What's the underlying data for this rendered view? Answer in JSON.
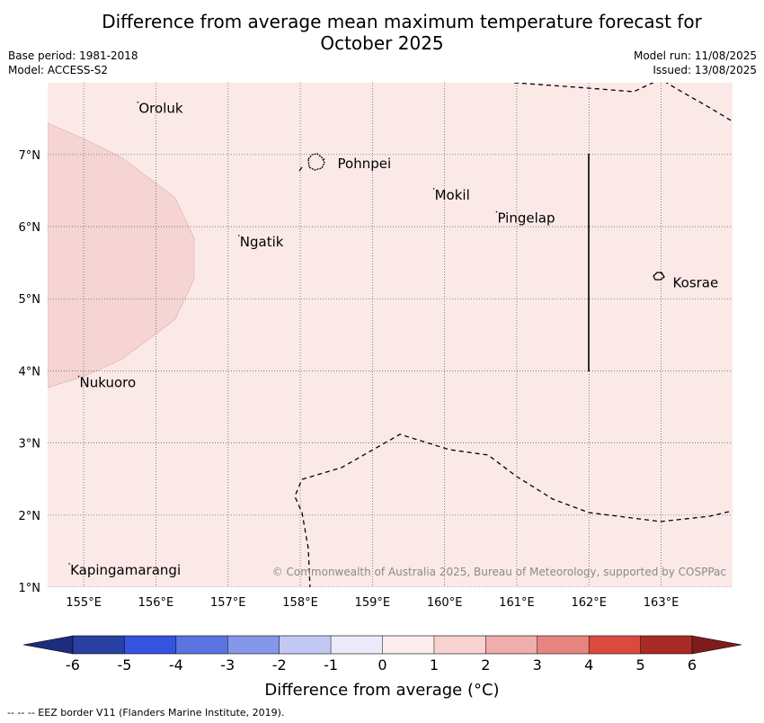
{
  "title_line1": "Difference from average mean maximum temperature forecast for",
  "title_line2": "October 2025",
  "base_period": "Base period: 1981-2018",
  "model": "Model: ACCESS-S2",
  "model_run": "Model run: 11/08/2025",
  "issued": "Issued: 13/08/2025",
  "map": {
    "lon_ticks": [
      "155°E",
      "156°E",
      "157°E",
      "158°E",
      "159°E",
      "160°E",
      "161°E",
      "162°E",
      "163°E"
    ],
    "lat_ticks": [
      "7°N",
      "6°N",
      "5°N",
      "4°N",
      "3°N",
      "2°N",
      "1°N"
    ],
    "background_color": "#fbe9e8",
    "anomaly_patch_color": "#f5d4d3",
    "places": [
      {
        "name": "Oroluk",
        "lon": 155.75,
        "lat": 7.65
      },
      {
        "name": "Pohnpei",
        "lon": 158.33,
        "lat": 6.86
      },
      {
        "name": "Mokil",
        "lon": 159.85,
        "lat": 6.45
      },
      {
        "name": "Pingelap",
        "lon": 160.72,
        "lat": 6.13
      },
      {
        "name": "Ngatik",
        "lon": 157.15,
        "lat": 5.8
      },
      {
        "name": "Kosrae",
        "lon": 163.0,
        "lat": 5.28
      },
      {
        "name": "Nukuoro",
        "lon": 154.93,
        "lat": 3.85
      },
      {
        "name": "Kapingamarangi",
        "lon": 154.8,
        "lat": 1.25
      }
    ],
    "copyright": "© Commonwealth of Australia 2025, Bureau of Meteorology, supported by COSPPac"
  },
  "colorbar": {
    "tick_labels": [
      "-6",
      "-5",
      "-4",
      "-3",
      "-2",
      "-1",
      "0",
      "1",
      "2",
      "3",
      "4",
      "5",
      "6"
    ],
    "colors": [
      "#2940a3",
      "#3553de",
      "#5a74e0",
      "#8597e8",
      "#c2c8f3",
      "#eaeafb",
      "#fdeeed",
      "#f7d2d1",
      "#efadab",
      "#e6857f",
      "#dc4a3f",
      "#a92b25"
    ],
    "under_color": "#1d2c7c",
    "over_color": "#7c1d1b",
    "label": "Difference from average (°C)"
  },
  "eez_note": "--  --  -- EEZ border V11 (Flanders Marine Institute, 2019)."
}
